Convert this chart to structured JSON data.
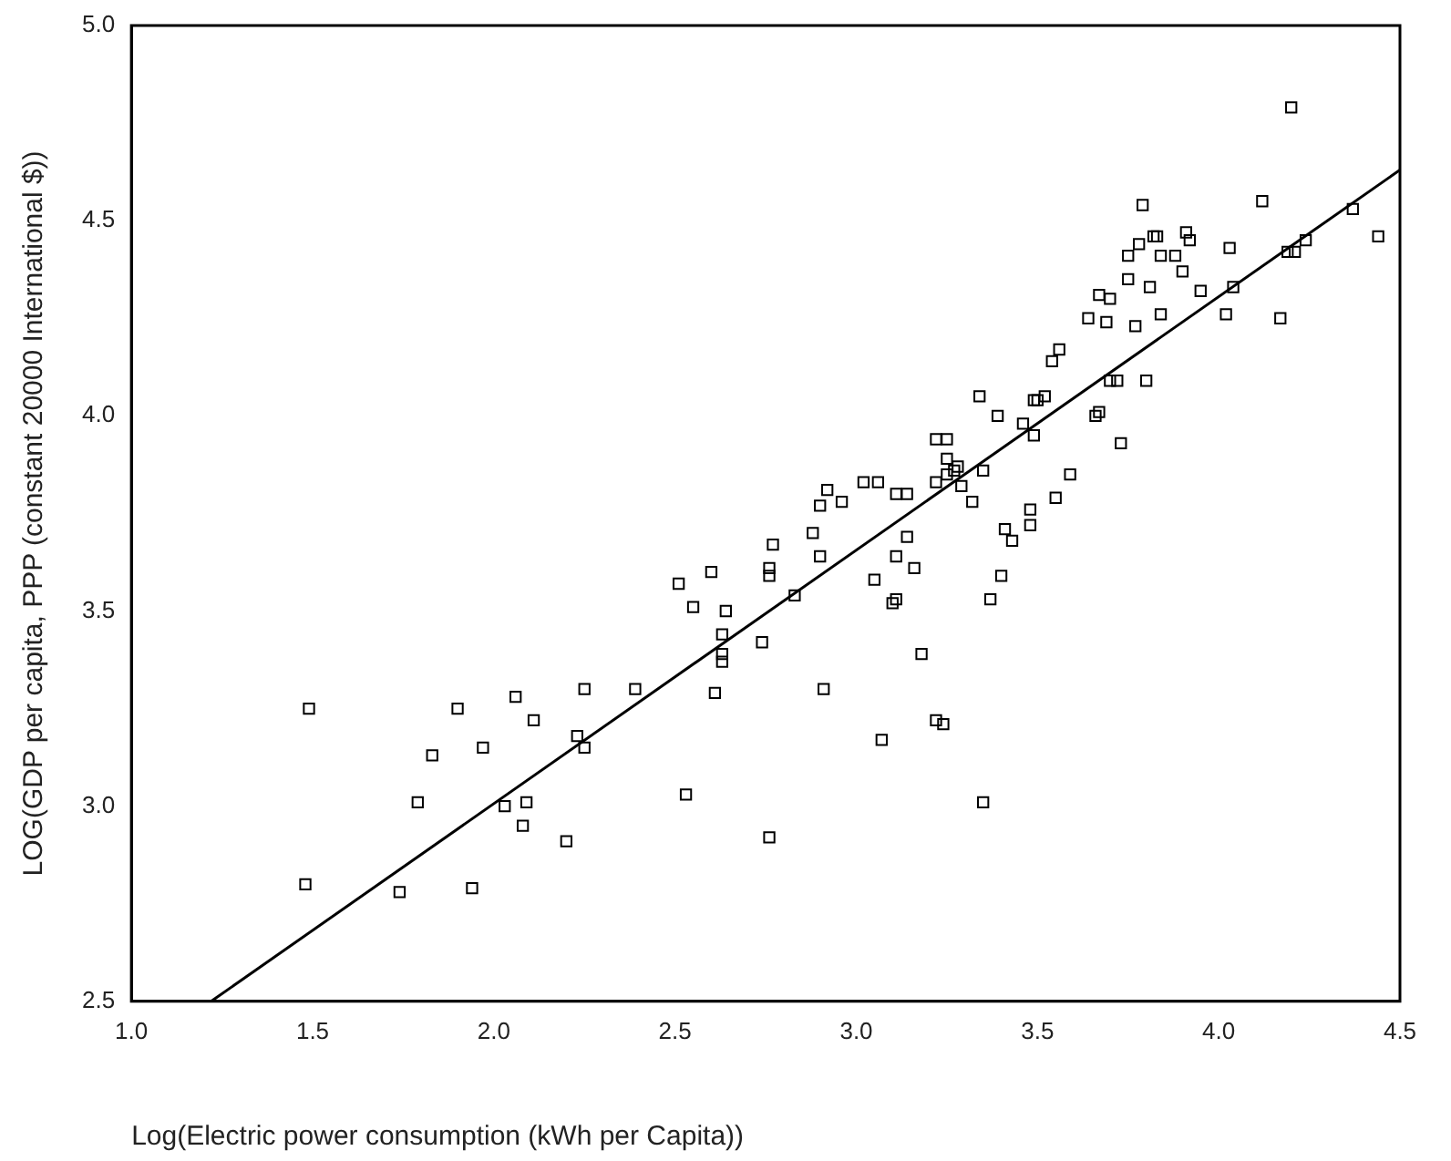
{
  "chart_data": {
    "type": "scatter",
    "xlabel": "Log(Electric power consumption (kWh per Capita))",
    "ylabel": "LOG(GDP per capita, PPP (constant 20000 International $))",
    "xlim": [
      1.0,
      4.5
    ],
    "ylim": [
      2.5,
      5.0
    ],
    "xticks": [
      {
        "value": 1.0,
        "label": "1.0"
      },
      {
        "value": 1.5,
        "label": "1.5"
      },
      {
        "value": 2.0,
        "label": "2.0"
      },
      {
        "value": 2.5,
        "label": "2.5"
      },
      {
        "value": 3.0,
        "label": "3.0"
      },
      {
        "value": 3.5,
        "label": "3.5"
      },
      {
        "value": 4.0,
        "label": "4.0"
      },
      {
        "value": 4.5,
        "label": "4.5"
      }
    ],
    "yticks": [
      {
        "value": 2.5,
        "label": "2.5"
      },
      {
        "value": 3.0,
        "label": "3.0"
      },
      {
        "value": 3.5,
        "label": "3.5"
      },
      {
        "value": 4.0,
        "label": "4.0"
      },
      {
        "value": 4.5,
        "label": "4.5"
      },
      {
        "value": 5.0,
        "label": "5.0"
      }
    ],
    "grid": false,
    "legend": false,
    "marker": "square",
    "series": [
      {
        "color": "#000000",
        "x": [
          1.49,
          1.48,
          1.74,
          1.79,
          1.83,
          1.9,
          1.94,
          1.97,
          2.03,
          2.06,
          2.08,
          2.09,
          2.11,
          2.2,
          2.23,
          2.25,
          2.25,
          2.39,
          2.51,
          2.53,
          2.55,
          2.6,
          2.61,
          2.63,
          2.63,
          2.63,
          2.64,
          2.74,
          2.76,
          2.76,
          2.76,
          2.77,
          2.83,
          2.88,
          2.9,
          2.9,
          2.91,
          2.92,
          2.96,
          3.02,
          3.06,
          3.05,
          3.07,
          3.1,
          3.11,
          3.11,
          3.11,
          3.14,
          3.14,
          3.16,
          3.18,
          3.22,
          3.24,
          3.22,
          3.22,
          3.25,
          3.25,
          3.25,
          3.27,
          3.28,
          3.29,
          3.32,
          3.34,
          3.35,
          3.35,
          3.37,
          3.39,
          3.4,
          3.41,
          3.43,
          3.46,
          3.48,
          3.48,
          3.49,
          3.49,
          3.5,
          3.52,
          3.54,
          3.56,
          3.55,
          3.59,
          3.64,
          3.66,
          3.67,
          3.67,
          3.69,
          3.7,
          3.7,
          3.72,
          3.73,
          3.75,
          3.75,
          3.77,
          3.78,
          3.79,
          3.8,
          3.81,
          3.82,
          3.83,
          3.84,
          3.84,
          3.88,
          3.9,
          3.91,
          3.92,
          3.95,
          4.02,
          4.03,
          4.04,
          4.12,
          4.17,
          4.19,
          4.2,
          4.21,
          4.24,
          4.37,
          4.44
        ],
        "values": [
          3.25,
          2.8,
          2.78,
          3.01,
          3.13,
          3.25,
          2.79,
          3.15,
          3.0,
          3.28,
          2.95,
          3.01,
          3.22,
          2.91,
          3.18,
          3.15,
          3.3,
          3.3,
          3.57,
          3.03,
          3.51,
          3.6,
          3.29,
          3.39,
          3.44,
          3.37,
          3.5,
          3.42,
          2.92,
          3.61,
          3.59,
          3.67,
          3.54,
          3.7,
          3.64,
          3.77,
          3.3,
          3.81,
          3.78,
          3.83,
          3.83,
          3.58,
          3.17,
          3.52,
          3.53,
          3.8,
          3.64,
          3.69,
          3.8,
          3.61,
          3.39,
          3.22,
          3.21,
          3.94,
          3.83,
          3.89,
          3.94,
          3.85,
          3.86,
          3.87,
          3.82,
          3.78,
          4.05,
          3.86,
          3.01,
          3.53,
          4.0,
          3.59,
          3.71,
          3.68,
          3.98,
          3.76,
          3.72,
          3.95,
          4.04,
          4.04,
          4.05,
          4.14,
          4.17,
          3.79,
          3.85,
          4.25,
          4.0,
          4.01,
          4.31,
          4.24,
          4.3,
          4.09,
          4.09,
          3.93,
          4.41,
          4.35,
          4.23,
          4.44,
          4.54,
          4.09,
          4.33,
          4.46,
          4.46,
          4.26,
          4.41,
          4.41,
          4.37,
          4.47,
          4.45,
          4.32,
          4.26,
          4.43,
          4.33,
          4.55,
          4.25,
          4.42,
          4.79,
          4.42,
          4.45,
          4.53,
          4.46
        ]
      },
      {
        "type": "line",
        "color": "#000000",
        "marker": "none",
        "line_style": "solid",
        "x": [
          1.22,
          4.5
        ],
        "values": [
          2.5,
          4.63
        ]
      }
    ]
  }
}
